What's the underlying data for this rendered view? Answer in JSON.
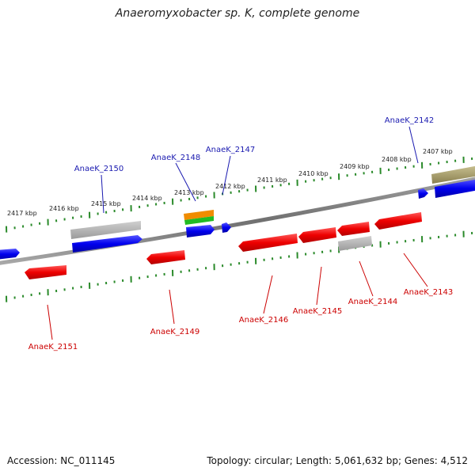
{
  "title": "Anaeromyxobacter sp. K, complete genome",
  "footer": {
    "accession": "Accession: NC_011145",
    "summary": "Topology: circular; Length: 5,061,632 bp; Genes: 4,512"
  },
  "ticks": [
    "2417 kbp",
    "2416 kbp",
    "2415 kbp",
    "2414 kbp",
    "2413 kbp",
    "2412 kbp",
    "2411 kbp",
    "2410 kbp",
    "2409 kbp",
    "2408 kbp",
    "2407 kbp"
  ],
  "colors": {
    "forward": "#0000ee",
    "reverse": "#ee0000",
    "label_forward": "#1a1ab0",
    "label_reverse": "#cc0000",
    "backbone": "#808080",
    "ticks": "#2a8a2a",
    "pseudo": "#b8b8b8",
    "olive": "#a09860",
    "orange": "#f08c00",
    "green": "#22bb22"
  },
  "labels": {
    "forward": [
      "AnaeK_2150",
      "AnaeK_2148",
      "AnaeK_2147",
      "AnaeK_2142"
    ],
    "reverse": [
      "AnaeK_2151",
      "AnaeK_2149",
      "AnaeK_2146",
      "AnaeK_2145",
      "AnaeK_2144",
      "AnaeK_2143"
    ]
  }
}
